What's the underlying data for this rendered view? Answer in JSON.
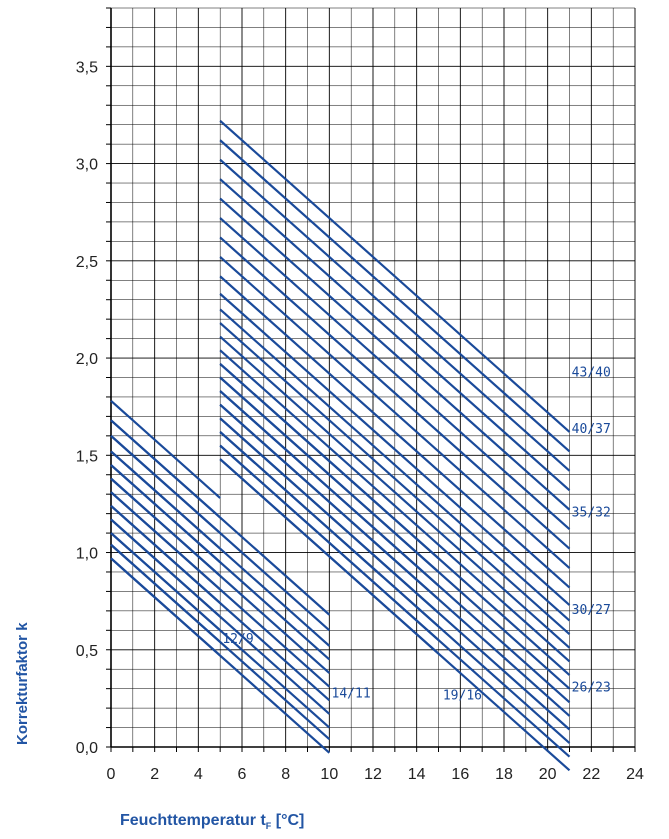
{
  "chart_data": {
    "type": "line",
    "title": "",
    "ylabel": "Korrekturfaktor k",
    "xlabel_prefix": "Feuchttemperatur t",
    "xlabel_sub": "F",
    "xlabel_suffix": " [°C]",
    "xlim": [
      0,
      24
    ],
    "ylim": [
      0,
      3.8
    ],
    "x_ticks": [
      "0",
      "2",
      "4",
      "6",
      "8",
      "10",
      "12",
      "14",
      "16",
      "18",
      "20",
      "22",
      "24"
    ],
    "y_ticks": [
      "0,0",
      "0,5",
      "1,0",
      "1,5",
      "2,0",
      "2,5",
      "3,0",
      "3,5"
    ],
    "grid": true,
    "line_color": "#1a4a9a",
    "groups": [
      {
        "label": "12/9",
        "x_range": [
          0,
          5
        ],
        "k_start": [
          0.97,
          1.04,
          1.1,
          1.17,
          1.24,
          1.31,
          1.38,
          1.45,
          1.52,
          1.6,
          1.68,
          1.78
        ]
      },
      {
        "label": "14/11",
        "x_range": [
          0,
          10
        ],
        "k_start": [
          0.97,
          1.04,
          1.1,
          1.17,
          1.24,
          1.31,
          1.38,
          1.45,
          1.52,
          1.6,
          1.68
        ]
      },
      {
        "label": "19/16",
        "x_range": [
          5,
          15
        ],
        "k_start": [
          1.48,
          1.55,
          1.62,
          1.69,
          1.76,
          1.83,
          1.9,
          1.97
        ]
      },
      {
        "label": "26/23",
        "x_range": [
          5,
          21
        ],
        "k_start": [
          1.48,
          1.55,
          1.62,
          1.69,
          1.76,
          1.83,
          1.9,
          1.97,
          2.04,
          2.11,
          2.18,
          2.25,
          2.33,
          2.42,
          2.52,
          2.62,
          2.72,
          2.82,
          2.92,
          3.02,
          3.12,
          3.22
        ]
      }
    ],
    "annotations": [
      {
        "text": "12/9",
        "x": 5.1,
        "y": 0.56
      },
      {
        "text": "14/11",
        "x": 10.1,
        "y": 0.28
      },
      {
        "text": "19/16",
        "x": 15.2,
        "y": 0.27
      },
      {
        "text": "26/23",
        "x": 21.1,
        "y": 0.31
      },
      {
        "text": "30/27",
        "x": 21.1,
        "y": 0.71
      },
      {
        "text": "35/32",
        "x": 21.1,
        "y": 1.21
      },
      {
        "text": "40/37",
        "x": 21.1,
        "y": 1.64
      },
      {
        "text": "43/40",
        "x": 21.1,
        "y": 1.93
      }
    ]
  }
}
